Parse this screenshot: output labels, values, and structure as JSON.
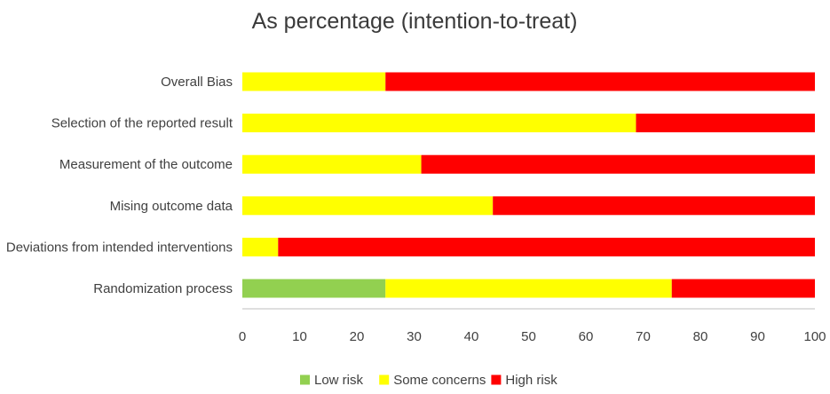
{
  "chart_data": {
    "type": "bar",
    "orientation": "horizontal",
    "stacked": true,
    "title": "As percentage (intention-to-treat)",
    "categories": [
      "Overall Bias",
      "Selection of the reported result",
      "Measurement of the outcome",
      "Mising outcome data",
      "Deviations from intended interventions",
      "Randomization process"
    ],
    "series": [
      {
        "name": "Low risk",
        "color": "#92d050",
        "values": [
          0,
          0,
          0,
          0,
          0,
          25
        ]
      },
      {
        "name": "Some concerns",
        "color": "#ffff00",
        "values": [
          25,
          68.75,
          31.25,
          43.75,
          6.25,
          50
        ]
      },
      {
        "name": "High risk",
        "color": "#ff0000",
        "values": [
          75,
          31.25,
          68.75,
          56.25,
          93.75,
          25
        ]
      }
    ],
    "xlim": [
      0,
      100
    ],
    "xticks": [
      "0",
      "10",
      "20",
      "30",
      "40",
      "50",
      "60",
      "70",
      "80",
      "90",
      "100"
    ],
    "xlabel": "",
    "ylabel": "",
    "grid": false,
    "legend_position": "bottom"
  }
}
